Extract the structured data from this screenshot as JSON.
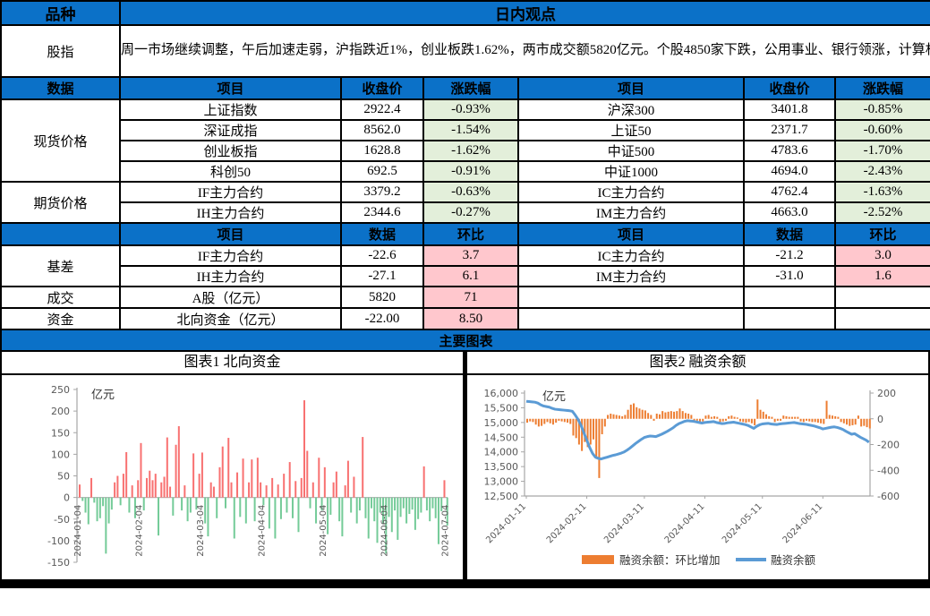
{
  "colors": {
    "header_blue": "#0b71c8",
    "green_text": "#00b050",
    "green_bg": "#e3efda",
    "red_text": "#fe1010",
    "red_bg": "#ffc7cd",
    "bar_red": "#f87171",
    "bar_green": "#74cb98",
    "orange": "#ed7d31",
    "line_blue": "#5b9bd5"
  },
  "top": {
    "variety_label": "品种",
    "view_label": "日内观点"
  },
  "comment": {
    "group": "股指",
    "text": "周一市场继续调整，午后加速走弱，沪指跌近1%，创业板跌1.62%，两市成交额5820亿元。个股4850家下跌，公用事业、银行领涨，计算机、传媒、地产领跌。"
  },
  "header1": [
    "数据",
    "项目",
    "收盘价",
    "涨跌幅",
    "项目",
    "收盘价",
    "涨跌幅"
  ],
  "header2": [
    "",
    "项目",
    "数据",
    "环比",
    "项目",
    "数据",
    "环比"
  ],
  "groups": {
    "spot": "现货价格",
    "futures": "期货价格",
    "basis": "基差",
    "turnover": "成交",
    "flows": "资金"
  },
  "spot_rows": [
    {
      "l_item": "上证指数",
      "l_close": "2922.4",
      "l_chg": "-0.93%",
      "r_item": "沪深300",
      "r_close": "3401.8",
      "r_chg": "-0.85%"
    },
    {
      "l_item": "深证成指",
      "l_close": "8562.0",
      "l_chg": "-1.54%",
      "r_item": "上证50",
      "r_close": "2371.7",
      "r_chg": "-0.60%"
    },
    {
      "l_item": "创业板指",
      "l_close": "1628.8",
      "l_chg": "-1.62%",
      "r_item": "中证500",
      "r_close": "4783.6",
      "r_chg": "-1.70%"
    },
    {
      "l_item": "科创50",
      "l_close": "692.5",
      "l_chg": "-0.91%",
      "r_item": "中证1000",
      "r_close": "4694.0",
      "r_chg": "-2.43%"
    }
  ],
  "futures_rows": [
    {
      "l_item": "IF主力合约",
      "l_close": "3379.2",
      "l_chg": "-0.63%",
      "r_item": "IC主力合约",
      "r_close": "4762.4",
      "r_chg": "-1.63%"
    },
    {
      "l_item": "IH主力合约",
      "l_close": "2344.6",
      "l_chg": "-0.27%",
      "r_item": "IM主力合约",
      "r_close": "4663.0",
      "r_chg": "-2.52%"
    }
  ],
  "basis_rows": [
    {
      "l_item": "IF主力合约",
      "l_val": "-22.6",
      "l_chg": "3.7",
      "r_item": "IC主力合约",
      "r_val": "-21.2",
      "r_chg": "3.0"
    },
    {
      "l_item": "IH主力合约",
      "l_val": "-27.1",
      "l_chg": "6.1",
      "r_item": "IM主力合约",
      "r_val": "-31.0",
      "r_chg": "1.6"
    }
  ],
  "turnover_row": {
    "item": "A股（亿元）",
    "val": "5820",
    "chg": "71"
  },
  "flows_row": {
    "item": "北向资金（亿元）",
    "val": "-22.00",
    "chg": "8.50"
  },
  "sections": {
    "main_charts_label": "主要图表"
  },
  "chart_data": [
    {
      "type": "bar",
      "title": "图表1 北向资金",
      "ylabel": "亿元",
      "ylim": [
        -150,
        250
      ],
      "yticks": [
        250,
        200,
        150,
        100,
        50,
        0,
        -50,
        -100,
        -150
      ],
      "x_tick_labels": [
        "2024-01-04",
        "2024-02-04",
        "2024-03-04",
        "2024-04-04",
        "2024-05-04",
        "2024-06-04",
        "2024-07-04"
      ],
      "x_tick_idx": [
        0,
        21,
        42,
        63,
        84,
        105,
        126
      ],
      "pos_color": "#f87171",
      "neg_color": "#74cb98",
      "values": [
        30,
        -8,
        -35,
        -62,
        45,
        -12,
        -55,
        -48,
        -20,
        -130,
        -60,
        -28,
        35,
        50,
        -18,
        55,
        105,
        -35,
        28,
        -48,
        40,
        126,
        -30,
        45,
        62,
        40,
        55,
        -88,
        35,
        48,
        139,
        25,
        -42,
        122,
        165,
        -30,
        28,
        -55,
        -35,
        102,
        -28,
        55,
        104,
        -60,
        -90,
        35,
        25,
        -48,
        70,
        118,
        -25,
        138,
        35,
        -95,
        58,
        -45,
        90,
        -60,
        35,
        88,
        -55,
        92,
        35,
        -18,
        28,
        -72,
        45,
        -95,
        30,
        -50,
        55,
        -35,
        82,
        -48,
        38,
        -80,
        45,
        225,
        108,
        -25,
        35,
        -60,
        92,
        -30,
        70,
        -85,
        -40,
        35,
        60,
        -55,
        -90,
        28,
        85,
        -35,
        48,
        -60,
        -30,
        140,
        -48,
        -95,
        -25,
        -55,
        -105,
        -35,
        -60,
        -130,
        -45,
        -80,
        -30,
        -98,
        -45,
        -25,
        -60,
        -38,
        -28,
        -75,
        -50,
        -35,
        72,
        -30,
        -55,
        -25,
        -48,
        -108,
        -32,
        40,
        -65
      ]
    },
    {
      "type": "bar+line",
      "title": "图表2 融资余额",
      "ylabel": "亿元",
      "left_ylim": [
        12500,
        16000
      ],
      "left_tick_labels": [
        "16,000",
        "15,500",
        "15,000",
        "14,500",
        "14,000",
        "13,500",
        "13,000",
        "12,500"
      ],
      "left_tick_values": [
        16000,
        15500,
        15000,
        14500,
        14000,
        13500,
        13000,
        12500
      ],
      "right_ylim": [
        -600,
        200
      ],
      "right_yticks": [
        200,
        0,
        -200,
        -400,
        -600
      ],
      "x_tick_labels": [
        "2024-01-11",
        "2024-02-11",
        "2024-03-11",
        "2024-04-11",
        "2024-05-11",
        "2024-06-11"
      ],
      "x_tick_idx": [
        0,
        21,
        41,
        62,
        82,
        103
      ],
      "legend_position": "bottom",
      "series": [
        {
          "name": "融资余额：环比增加",
          "type": "bar",
          "axis": "right",
          "color": "#ed7d31",
          "values": [
            -30,
            -20,
            -25,
            -45,
            -60,
            -55,
            -40,
            -25,
            -35,
            -45,
            -30,
            -15,
            -20,
            -25,
            -30,
            -40,
            -130,
            -150,
            -200,
            -250,
            -180,
            -220,
            -200,
            -160,
            -310,
            -460,
            -120,
            -60,
            30,
            40,
            35,
            30,
            25,
            20,
            30,
            70,
            110,
            120,
            90,
            80,
            70,
            65,
            45,
            30,
            -15,
            40,
            35,
            60,
            50,
            55,
            60,
            55,
            60,
            80,
            60,
            45,
            40,
            30,
            -20,
            -15,
            -25,
            -20,
            25,
            30,
            15,
            20,
            15,
            -25,
            -20,
            -15,
            20,
            25,
            15,
            10,
            -20,
            -25,
            -30,
            -25,
            -35,
            -50,
            150,
            70,
            55,
            35,
            20,
            15,
            -25,
            -15,
            -15,
            25,
            20,
            15,
            15,
            15,
            15,
            -20,
            -25,
            -15,
            -20,
            -25,
            -25,
            -30,
            -35,
            -40,
            140,
            30,
            25,
            20,
            15,
            -25,
            -35,
            -45,
            -55,
            -50,
            -45,
            25,
            -60,
            -55,
            -65,
            -75
          ]
        },
        {
          "name": "融资余额",
          "type": "line",
          "axis": "left",
          "color": "#5b9bd5",
          "values": [
            15720,
            15710,
            15700,
            15690,
            15660,
            15600,
            15560,
            15540,
            15520,
            15480,
            15450,
            15440,
            15430,
            15420,
            15410,
            15400,
            15380,
            15250,
            15100,
            14900,
            14650,
            14400,
            14150,
            13950,
            13820,
            13780,
            13760,
            13790,
            13820,
            13850,
            13880,
            13900,
            13930,
            13960,
            14000,
            14060,
            14130,
            14210,
            14290,
            14360,
            14430,
            14490,
            14520,
            14540,
            14530,
            14520,
            14560,
            14600,
            14650,
            14700,
            14760,
            14820,
            14900,
            14960,
            15000,
            15040,
            15060,
            15050,
            15040,
            15020,
            15000,
            14980,
            15000,
            15010,
            15020,
            15030,
            15000,
            14980,
            14960,
            14970,
            14990,
            15000,
            15010,
            14990,
            14970,
            14950,
            14930,
            14900,
            14850,
            14800,
            14870,
            14920,
            14950,
            14960,
            14970,
            14950,
            14940,
            14930,
            14950,
            14960,
            14970,
            14980,
            14990,
            15000,
            14980,
            14960,
            14950,
            14940,
            14920,
            14900,
            14880,
            14850,
            14820,
            14780,
            14800,
            14820,
            14840,
            14850,
            14830,
            14800,
            14760,
            14700,
            14650,
            14600,
            14620,
            14560,
            14500,
            14450,
            14400,
            14330
          ]
        }
      ]
    }
  ]
}
